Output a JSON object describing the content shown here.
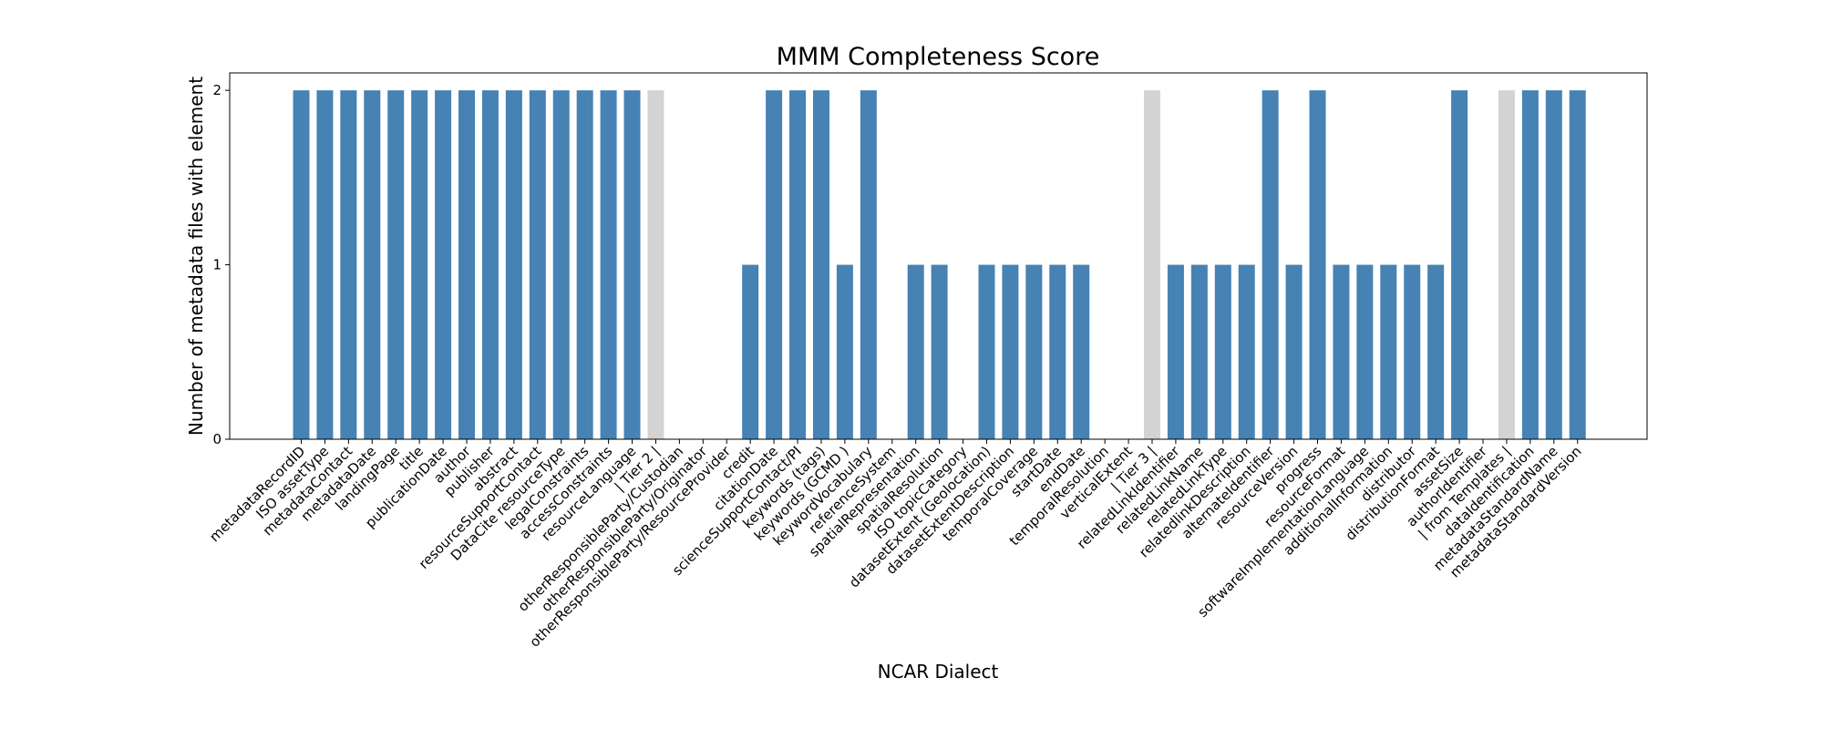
{
  "chart_data": {
    "type": "bar",
    "title": "MMM Completeness Score",
    "xlabel": "NCAR Dialect",
    "ylabel": "Number of metadata files with element",
    "ylim": [
      0,
      2.1
    ],
    "yticks": [
      0,
      1,
      2
    ],
    "grid": false,
    "colors": {
      "element": "#4682b4",
      "tier_marker": "#d3d3d3"
    },
    "categories": [
      "metadataRecordID",
      "ISO assetType",
      "metadataContact",
      "metadataDate",
      "landingPage",
      "title",
      "publicationDate",
      "author",
      "publisher",
      "abstract",
      "resourceSupportContact",
      "DataCite resourceType",
      "legalConstraints",
      "accessConstraints",
      "resourceLanguage",
      "| Tier 2 |",
      "otherResponsibleParty/Custodian",
      "otherResponsibleParty/Originator",
      "otherResponsibleParty/ResourceProvider",
      "credit",
      "citationDate",
      "scienceSupportContact/PI",
      "keywords (tags)",
      "keywords (GCMD )",
      "keywordVocabulary",
      "referenceSystem",
      "spatialRepresentation",
      "spatialResolution",
      "ISO topicCategory",
      "datasetExtent (Geolocation)",
      "datasetExtentDescription",
      "temporalCoverage",
      "startDate",
      "endDate",
      "temporalResolution",
      "verticalExtent",
      "| Tier 3 |",
      "relatedLinkIdentifier",
      "relatedLinkName",
      "relatedLinkType",
      "relatedlinkDescription",
      "alternateIdentifier",
      "resourceVersion",
      "progress",
      "resourceFormat",
      "softwareImplementationLanguage",
      "additionalInformation",
      "distributor",
      "distributionFormat",
      "assetSize",
      "authorIdentifier",
      "| from Templates |",
      "dataIdentification",
      "metadataStandardName",
      "metadataStandardVersion"
    ],
    "values": [
      2,
      2,
      2,
      2,
      2,
      2,
      2,
      2,
      2,
      2,
      2,
      2,
      2,
      2,
      2,
      2,
      0,
      0,
      0,
      1,
      2,
      2,
      2,
      1,
      2,
      0,
      1,
      1,
      0,
      1,
      1,
      1,
      1,
      1,
      0,
      0,
      2,
      1,
      1,
      1,
      1,
      2,
      1,
      2,
      1,
      1,
      1,
      1,
      1,
      2,
      0,
      2,
      2,
      2,
      2
    ],
    "tier_markers": [
      "| Tier 2 |",
      "| Tier 3 |",
      "| from Templates |"
    ]
  }
}
